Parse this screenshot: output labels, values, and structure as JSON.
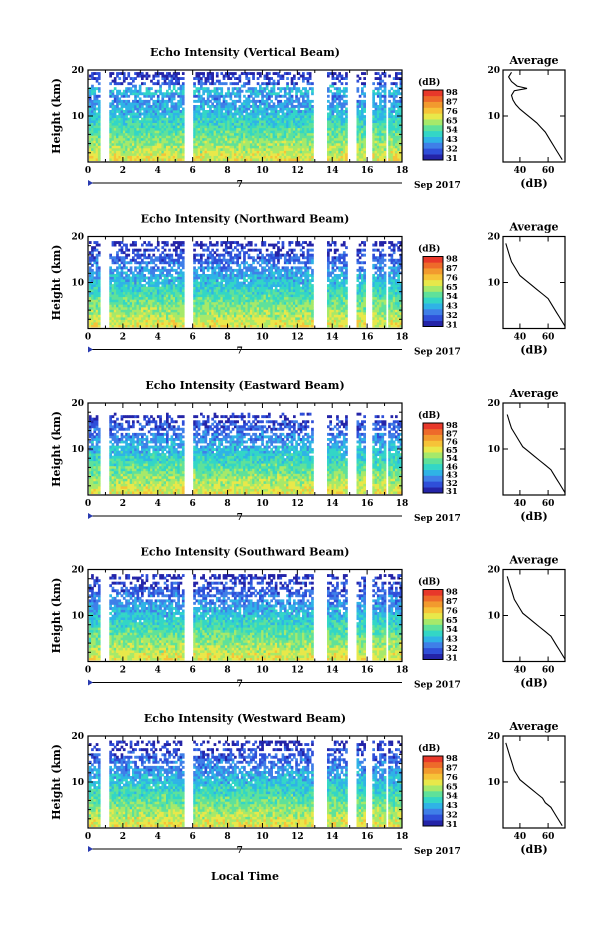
{
  "chart_data": {
    "type": "heatmap",
    "xlabel": "Local Time",
    "date_label": "Sep 2017",
    "day_marker": "7",
    "x_ticks": [
      0,
      2,
      4,
      6,
      8,
      10,
      12,
      14,
      16,
      18
    ],
    "xlim": [
      0,
      18
    ],
    "y_ticks": [
      10,
      20
    ],
    "ylim": [
      0,
      20
    ],
    "ylabel": "Height (km)",
    "colorbar_unit": "(dB)",
    "colorbar_ticks": [
      31,
      32,
      43,
      54,
      65,
      76,
      87,
      98
    ],
    "colorbar_colors": [
      "#2424a8",
      "#2f4fd9",
      "#3f7fe8",
      "#2fb3e6",
      "#33d6c6",
      "#5fe19a",
      "#a6e96a",
      "#e8e84a",
      "#f6c338",
      "#f29a2e",
      "#ee6a2a",
      "#e8382a"
    ],
    "data_gaps_hours": [
      [
        0.6,
        1.1
      ],
      [
        5.4,
        6.0
      ],
      [
        12.8,
        13.6
      ],
      [
        14.8,
        15.3
      ],
      [
        15.8,
        16.2
      ],
      [
        17.0,
        17.2
      ]
    ],
    "profile_title": "Average",
    "profile_xlabel": "(dB)",
    "profile_xticks": [
      40,
      60
    ],
    "profile_xlim": [
      28,
      72
    ],
    "profile_yticks": [
      10,
      20
    ],
    "panels": [
      {
        "title": "Echo Intensity (Vertical Beam)",
        "colorbar_ticks": [
          31,
          32,
          43,
          54,
          65,
          76,
          87,
          98
        ],
        "top_km": 19.5,
        "profile": [
          [
            70,
            0.5
          ],
          [
            68,
            1.5
          ],
          [
            66,
            2.5
          ],
          [
            64,
            3.5
          ],
          [
            62,
            4.5
          ],
          [
            60,
            5.5
          ],
          [
            58,
            6.5
          ],
          [
            55,
            7.5
          ],
          [
            52,
            8.5
          ],
          [
            48,
            9.5
          ],
          [
            44,
            10.5
          ],
          [
            40,
            11.5
          ],
          [
            37,
            12.5
          ],
          [
            35,
            13.5
          ],
          [
            34,
            14.5
          ],
          [
            36,
            15.5
          ],
          [
            45,
            16
          ],
          [
            38,
            16.5
          ],
          [
            34,
            17.5
          ],
          [
            32,
            18.5
          ],
          [
            34,
            19.5
          ]
        ]
      },
      {
        "title": "Echo Intensity (Northward Beam)",
        "colorbar_ticks": [
          31,
          32,
          43,
          54,
          65,
          76,
          87,
          98
        ],
        "top_km": 18.5,
        "profile": [
          [
            72,
            0.5
          ],
          [
            70,
            1.5
          ],
          [
            68,
            2.5
          ],
          [
            66,
            3.5
          ],
          [
            64,
            4.5
          ],
          [
            62,
            5.5
          ],
          [
            60,
            6.5
          ],
          [
            56,
            7.5
          ],
          [
            52,
            8.5
          ],
          [
            48,
            9.5
          ],
          [
            44,
            10.5
          ],
          [
            40,
            11.5
          ],
          [
            38,
            12.5
          ],
          [
            36,
            13.5
          ],
          [
            34,
            14.5
          ],
          [
            33,
            15.5
          ],
          [
            32,
            16.5
          ],
          [
            31,
            17.5
          ],
          [
            30,
            18.5
          ]
        ]
      },
      {
        "title": "Echo Intensity (Eastward Beam)",
        "colorbar_ticks": [
          31,
          32,
          43,
          46,
          54,
          65,
          76,
          87,
          98
        ],
        "top_km": 17.5,
        "profile": [
          [
            72,
            0.5
          ],
          [
            70,
            1.5
          ],
          [
            68,
            2.5
          ],
          [
            66,
            3.5
          ],
          [
            64,
            4.5
          ],
          [
            62,
            5.5
          ],
          [
            58,
            6.5
          ],
          [
            54,
            7.5
          ],
          [
            50,
            8.5
          ],
          [
            46,
            9.5
          ],
          [
            42,
            10.5
          ],
          [
            40,
            11.5
          ],
          [
            38,
            12.5
          ],
          [
            36,
            13.5
          ],
          [
            34,
            14.5
          ],
          [
            33,
            15.5
          ],
          [
            32,
            16.5
          ],
          [
            31,
            17.5
          ]
        ]
      },
      {
        "title": "Echo Intensity (Southward Beam)",
        "colorbar_ticks": [
          31,
          32,
          43,
          54,
          65,
          76,
          87,
          98
        ],
        "top_km": 18.5,
        "profile": [
          [
            72,
            0.5
          ],
          [
            70,
            1.5
          ],
          [
            68,
            2.5
          ],
          [
            66,
            3.5
          ],
          [
            64,
            4.5
          ],
          [
            62,
            5.5
          ],
          [
            58,
            6.5
          ],
          [
            54,
            7.5
          ],
          [
            50,
            8.5
          ],
          [
            46,
            9.5
          ],
          [
            42,
            10.5
          ],
          [
            40,
            11.5
          ],
          [
            38,
            12.5
          ],
          [
            36,
            13.5
          ],
          [
            35,
            14.5
          ],
          [
            34,
            15.5
          ],
          [
            33,
            16.5
          ],
          [
            32,
            17.5
          ],
          [
            31,
            18.5
          ]
        ]
      },
      {
        "title": "Echo Intensity (Westward Beam)",
        "colorbar_ticks": [
          31,
          32,
          43,
          54,
          65,
          76,
          87,
          98
        ],
        "top_km": 18.5,
        "profile": [
          [
            70,
            0.5
          ],
          [
            68,
            1.5
          ],
          [
            66,
            2.5
          ],
          [
            64,
            3.5
          ],
          [
            62,
            4.5
          ],
          [
            58,
            5.5
          ],
          [
            56,
            6.5
          ],
          [
            52,
            7.5
          ],
          [
            48,
            8.5
          ],
          [
            44,
            9.5
          ],
          [
            40,
            10.5
          ],
          [
            38,
            11.5
          ],
          [
            36,
            12.5
          ],
          [
            35,
            13.5
          ],
          [
            34,
            14.5
          ],
          [
            33,
            15.5
          ],
          [
            32,
            16.5
          ],
          [
            31,
            17.5
          ],
          [
            30,
            18.5
          ]
        ]
      }
    ]
  }
}
